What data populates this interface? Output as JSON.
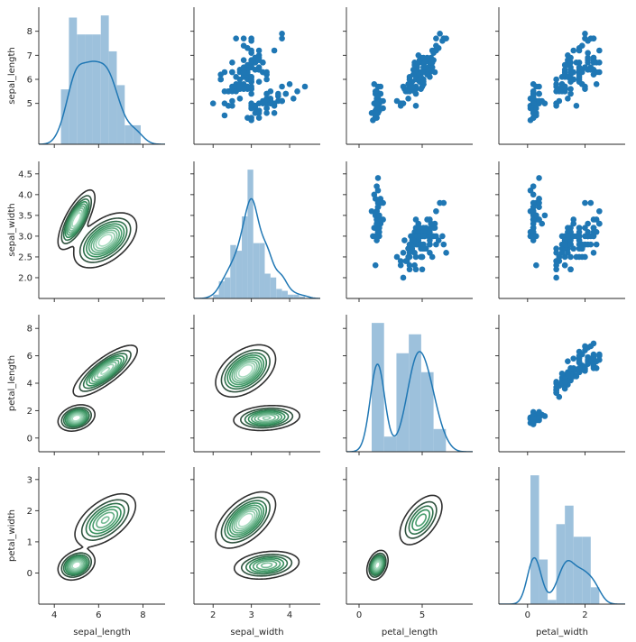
{
  "chart_data": {
    "type": "pairgrid",
    "variables": [
      "sepal_length",
      "sepal_width",
      "petal_length",
      "petal_width"
    ],
    "labels": {
      "sepal_length": "sepal_length",
      "sepal_width": "sepal_width",
      "petal_length": "petal_length",
      "petal_width": "petal_width"
    },
    "ranges": {
      "sepal_length": [
        3.3,
        9.0
      ],
      "sepal_width": [
        1.5,
        4.8
      ],
      "petal_length": [
        -1.0,
        9.0
      ],
      "petal_width": [
        -1.0,
        3.4
      ]
    },
    "ticks": {
      "sepal_length": {
        "row": [
          5,
          6,
          7,
          8
        ],
        "col": [
          4,
          6,
          8
        ]
      },
      "sepal_width": {
        "row": [
          2.0,
          2.5,
          3.0,
          3.5,
          4.0,
          4.5
        ],
        "col": [
          2,
          3,
          4
        ]
      },
      "petal_length": {
        "row": [
          0,
          2,
          4,
          6,
          8
        ],
        "col": [
          0,
          5
        ]
      },
      "petal_width": {
        "row": [
          0,
          1,
          2,
          3
        ],
        "col": [
          0,
          2
        ]
      }
    },
    "tick_labels": {
      "sepal_length": {
        "row": [
          "5",
          "6",
          "7",
          "8"
        ],
        "col": [
          "4",
          "6",
          "8"
        ]
      },
      "sepal_width": {
        "row": [
          "2.0",
          "2.5",
          "3.0",
          "3.5",
          "4.0",
          "4.5"
        ],
        "col": [
          "2",
          "3",
          "4"
        ]
      },
      "petal_length": {
        "row": [
          "0",
          "2",
          "4",
          "6",
          "8"
        ],
        "col": [
          "0",
          "5"
        ]
      },
      "petal_width": {
        "row": [
          "0",
          "1",
          "2",
          "3"
        ],
        "col": [
          "0",
          "2"
        ]
      }
    },
    "diagonal": "histogram with kde",
    "upper": "scatter",
    "lower": "kde contour",
    "colors": {
      "scatter": "#1f77b4",
      "hist": "#9dc1dc",
      "kde_line": "#1f77b4",
      "contour_dark": "#303030",
      "contour_green": "#2e8b57",
      "contour_light": "#a8dcc0"
    },
    "histograms": {
      "sepal_length": {
        "edges": [
          4.3,
          4.66,
          5.02,
          5.38,
          5.74,
          6.1,
          6.46,
          6.82,
          7.18,
          7.54,
          7.9
        ],
        "density": [
          0.26,
          0.6,
          0.52,
          0.52,
          0.52,
          0.61,
          0.44,
          0.28,
          0.09,
          0.09
        ]
      },
      "sepal_width": {
        "edges": [
          2.0,
          2.15,
          2.3,
          2.45,
          2.6,
          2.75,
          2.9,
          3.05,
          3.2,
          3.35,
          3.5,
          3.65,
          3.8,
          3.95,
          4.1,
          4.25,
          4.4
        ],
        "density": [
          0.04,
          0.18,
          0.22,
          0.56,
          0.5,
          0.86,
          1.35,
          0.58,
          0.58,
          0.26,
          0.22,
          0.1,
          0.08,
          0.04,
          0.04,
          0.02
        ]
      },
      "petal_length": {
        "edges": [
          1.0,
          1.98,
          2.96,
          3.94,
          4.92,
          5.9,
          6.88
        ],
        "density": [
          0.34,
          0.04,
          0.26,
          0.31,
          0.21,
          0.06
        ]
      },
      "petal_width": {
        "edges": [
          0.1,
          0.4,
          0.7,
          1.0,
          1.3,
          1.6,
          1.9,
          2.2,
          2.5
        ],
        "density": [
          1.53,
          0.53,
          0.05,
          0.95,
          1.17,
          0.8,
          0.8,
          0.2
        ]
      }
    },
    "kde_diagonal": {
      "sepal_length": {
        "bandwidth": 0.33
      },
      "sepal_width": {
        "bandwidth": 0.13
      },
      "petal_length": {
        "bandwidth": 0.55
      },
      "petal_width": {
        "bandwidth": 0.22
      }
    },
    "kde_2d": {
      "sepal_length|sepal_width": [
        {
          "mx": 5.0,
          "my": 3.4,
          "sx": 0.35,
          "sy": 0.3,
          "rho": 0.74,
          "w": 1.0
        },
        {
          "mx": 6.3,
          "my": 2.9,
          "sx": 0.6,
          "sy": 0.28,
          "rho": 0.5,
          "w": 2.0
        }
      ],
      "sepal_length|petal_length": [
        {
          "mx": 5.0,
          "my": 1.46,
          "sx": 0.35,
          "sy": 0.4,
          "rho": 0.27,
          "w": 1.0
        },
        {
          "mx": 6.3,
          "my": 4.9,
          "sx": 0.62,
          "sy": 0.8,
          "rho": 0.8,
          "w": 2.0
        }
      ],
      "sepal_length|petal_width": [
        {
          "mx": 5.0,
          "my": 0.25,
          "sx": 0.35,
          "sy": 0.2,
          "rho": 0.28,
          "w": 1.0
        },
        {
          "mx": 6.3,
          "my": 1.7,
          "sx": 0.62,
          "sy": 0.38,
          "rho": 0.55,
          "w": 2.0
        }
      ],
      "sepal_width|petal_length": [
        {
          "mx": 3.4,
          "my": 1.46,
          "sx": 0.38,
          "sy": 0.4,
          "rho": 0.18,
          "w": 1.0
        },
        {
          "mx": 2.85,
          "my": 4.9,
          "sx": 0.33,
          "sy": 0.8,
          "rho": 0.45,
          "w": 2.0
        }
      ],
      "sepal_width|petal_width": [
        {
          "mx": 3.4,
          "my": 0.25,
          "sx": 0.38,
          "sy": 0.2,
          "rho": 0.23,
          "w": 1.0
        },
        {
          "mx": 2.85,
          "my": 1.7,
          "sx": 0.33,
          "sy": 0.38,
          "rho": 0.55,
          "w": 2.0
        }
      ],
      "petal_length|petal_width": [
        {
          "mx": 1.46,
          "my": 0.25,
          "sx": 0.35,
          "sy": 0.2,
          "rho": 0.33,
          "w": 1.0
        },
        {
          "mx": 4.9,
          "my": 1.7,
          "sx": 0.8,
          "sy": 0.38,
          "rho": 0.55,
          "w": 2.0
        }
      ]
    },
    "kde_2d_levels": 9,
    "scatter_points": {
      "sepal_length": [
        5.1,
        4.9,
        4.7,
        4.6,
        5.0,
        5.4,
        4.6,
        5.0,
        4.4,
        4.9,
        5.4,
        4.8,
        4.8,
        4.3,
        5.8,
        5.7,
        5.4,
        5.1,
        5.7,
        5.1,
        5.4,
        5.1,
        4.6,
        5.1,
        4.8,
        5.0,
        5.0,
        5.2,
        5.2,
        4.7,
        4.8,
        5.4,
        5.2,
        5.5,
        4.9,
        5.0,
        5.5,
        4.9,
        4.4,
        5.1,
        5.0,
        4.5,
        4.4,
        5.0,
        5.1,
        4.8,
        5.1,
        4.6,
        5.3,
        5.0,
        7.0,
        6.4,
        6.9,
        5.5,
        6.5,
        5.7,
        6.3,
        4.9,
        6.6,
        5.2,
        5.0,
        5.9,
        6.0,
        6.1,
        5.6,
        6.7,
        5.6,
        5.8,
        6.2,
        5.6,
        5.9,
        6.1,
        6.3,
        6.1,
        6.4,
        6.6,
        6.8,
        6.7,
        6.0,
        5.7,
        5.5,
        5.5,
        5.8,
        6.0,
        5.4,
        6.0,
        6.7,
        6.3,
        5.6,
        5.5,
        5.5,
        6.1,
        5.8,
        5.0,
        5.6,
        5.7,
        5.7,
        6.2,
        5.1,
        5.7,
        6.3,
        5.8,
        7.1,
        6.3,
        6.5,
        7.6,
        4.9,
        7.3,
        6.7,
        7.2,
        6.5,
        6.4,
        6.8,
        5.7,
        5.8,
        6.4,
        6.5,
        7.7,
        7.7,
        6.0,
        6.9,
        5.6,
        7.7,
        6.3,
        6.7,
        7.2,
        6.2,
        6.1,
        6.4,
        7.2,
        7.4,
        7.9,
        6.4,
        6.3,
        6.1,
        7.7,
        6.3,
        6.4,
        6.0,
        6.9,
        6.7,
        6.9,
        5.8,
        6.8,
        6.7,
        6.7,
        6.3,
        6.5,
        6.2,
        5.9
      ],
      "sepal_width": [
        3.5,
        3.0,
        3.2,
        3.1,
        3.6,
        3.9,
        3.4,
        3.4,
        2.9,
        3.1,
        3.7,
        3.4,
        3.0,
        3.0,
        4.0,
        4.4,
        3.9,
        3.5,
        3.8,
        3.8,
        3.4,
        3.7,
        3.6,
        3.3,
        3.4,
        3.0,
        3.4,
        3.5,
        3.4,
        3.2,
        3.1,
        3.4,
        4.1,
        4.2,
        3.1,
        3.2,
        3.5,
        3.6,
        3.0,
        3.4,
        3.5,
        2.3,
        3.2,
        3.5,
        3.8,
        3.0,
        3.8,
        3.2,
        3.7,
        3.3,
        3.2,
        3.2,
        3.1,
        2.3,
        2.8,
        2.8,
        3.3,
        2.4,
        2.9,
        2.7,
        2.0,
        3.0,
        2.2,
        2.9,
        2.9,
        3.1,
        3.0,
        2.7,
        2.2,
        2.5,
        3.2,
        2.8,
        2.5,
        2.8,
        2.9,
        3.0,
        2.8,
        3.0,
        2.9,
        2.6,
        2.4,
        2.4,
        2.7,
        2.7,
        3.0,
        3.4,
        3.1,
        2.3,
        3.0,
        2.5,
        2.6,
        3.0,
        2.6,
        2.3,
        2.7,
        3.0,
        2.9,
        2.9,
        2.5,
        2.8,
        3.3,
        2.7,
        3.0,
        2.9,
        3.0,
        3.0,
        2.5,
        2.9,
        2.5,
        3.6,
        3.2,
        2.7,
        3.0,
        2.5,
        2.8,
        3.2,
        3.0,
        3.8,
        2.6,
        2.2,
        3.2,
        2.8,
        2.8,
        2.7,
        3.3,
        3.2,
        2.8,
        3.0,
        2.8,
        3.0,
        2.8,
        3.8,
        2.8,
        2.8,
        2.6,
        3.0,
        3.4,
        3.1,
        3.0,
        3.1,
        3.1,
        3.1,
        2.7,
        3.2,
        3.3,
        3.0,
        2.5,
        3.0,
        3.4,
        3.0
      ],
      "petal_length": [
        1.4,
        1.4,
        1.3,
        1.5,
        1.4,
        1.7,
        1.4,
        1.5,
        1.4,
        1.5,
        1.5,
        1.6,
        1.4,
        1.1,
        1.2,
        1.5,
        1.3,
        1.4,
        1.7,
        1.5,
        1.7,
        1.5,
        1.0,
        1.7,
        1.9,
        1.6,
        1.6,
        1.5,
        1.4,
        1.6,
        1.6,
        1.5,
        1.5,
        1.4,
        1.5,
        1.2,
        1.3,
        1.4,
        1.3,
        1.5,
        1.3,
        1.3,
        1.3,
        1.6,
        1.9,
        1.4,
        1.6,
        1.4,
        1.5,
        1.4,
        4.7,
        4.5,
        4.9,
        4.0,
        4.6,
        4.5,
        4.7,
        3.3,
        4.6,
        3.9,
        3.5,
        4.2,
        4.0,
        4.7,
        3.6,
        4.4,
        4.5,
        4.1,
        4.5,
        3.9,
        4.8,
        4.0,
        4.9,
        4.7,
        4.3,
        4.4,
        4.8,
        5.0,
        4.5,
        3.5,
        3.8,
        3.7,
        3.9,
        5.1,
        4.5,
        4.5,
        4.7,
        4.4,
        4.1,
        4.0,
        4.4,
        4.6,
        4.0,
        3.3,
        4.2,
        4.2,
        4.2,
        4.3,
        3.0,
        4.1,
        6.0,
        5.1,
        5.9,
        5.6,
        5.8,
        6.6,
        4.5,
        6.3,
        5.8,
        6.1,
        5.1,
        5.3,
        5.5,
        5.0,
        5.1,
        5.3,
        5.5,
        6.7,
        6.9,
        5.0,
        5.7,
        4.9,
        6.7,
        4.9,
        5.7,
        6.0,
        4.8,
        4.9,
        5.6,
        5.8,
        6.1,
        6.4,
        5.6,
        5.1,
        5.6,
        6.1,
        5.6,
        5.5,
        4.8,
        5.4,
        5.6,
        5.1,
        5.1,
        5.9,
        5.7,
        5.2,
        5.0,
        5.2,
        5.4,
        5.1
      ],
      "petal_width": [
        0.2,
        0.2,
        0.2,
        0.2,
        0.2,
        0.4,
        0.3,
        0.2,
        0.2,
        0.1,
        0.2,
        0.2,
        0.1,
        0.1,
        0.2,
        0.4,
        0.4,
        0.3,
        0.3,
        0.3,
        0.2,
        0.4,
        0.2,
        0.5,
        0.2,
        0.2,
        0.4,
        0.2,
        0.2,
        0.2,
        0.2,
        0.4,
        0.1,
        0.2,
        0.2,
        0.2,
        0.2,
        0.1,
        0.2,
        0.2,
        0.3,
        0.3,
        0.2,
        0.6,
        0.4,
        0.3,
        0.2,
        0.2,
        0.2,
        0.2,
        1.4,
        1.5,
        1.5,
        1.3,
        1.5,
        1.3,
        1.6,
        1.0,
        1.3,
        1.4,
        1.0,
        1.5,
        1.0,
        1.4,
        1.3,
        1.4,
        1.5,
        1.0,
        1.5,
        1.1,
        1.8,
        1.3,
        1.5,
        1.2,
        1.3,
        1.4,
        1.4,
        1.7,
        1.5,
        1.0,
        1.1,
        1.0,
        1.2,
        1.6,
        1.5,
        1.6,
        1.5,
        1.3,
        1.3,
        1.3,
        1.2,
        1.4,
        1.2,
        1.0,
        1.3,
        1.2,
        1.3,
        1.3,
        1.1,
        1.3,
        2.5,
        1.9,
        2.1,
        1.8,
        2.2,
        2.1,
        1.7,
        1.8,
        1.8,
        2.5,
        2.0,
        1.9,
        2.1,
        2.0,
        2.4,
        2.3,
        1.8,
        2.2,
        2.3,
        1.5,
        2.3,
        2.0,
        2.0,
        1.8,
        2.1,
        1.8,
        1.8,
        1.8,
        2.1,
        1.6,
        1.9,
        2.0,
        2.2,
        1.5,
        1.4,
        2.3,
        2.4,
        1.8,
        1.8,
        2.1,
        2.4,
        2.3,
        1.9,
        2.3,
        2.5,
        2.3,
        1.9,
        2.0,
        2.3,
        1.8
      ]
    }
  }
}
